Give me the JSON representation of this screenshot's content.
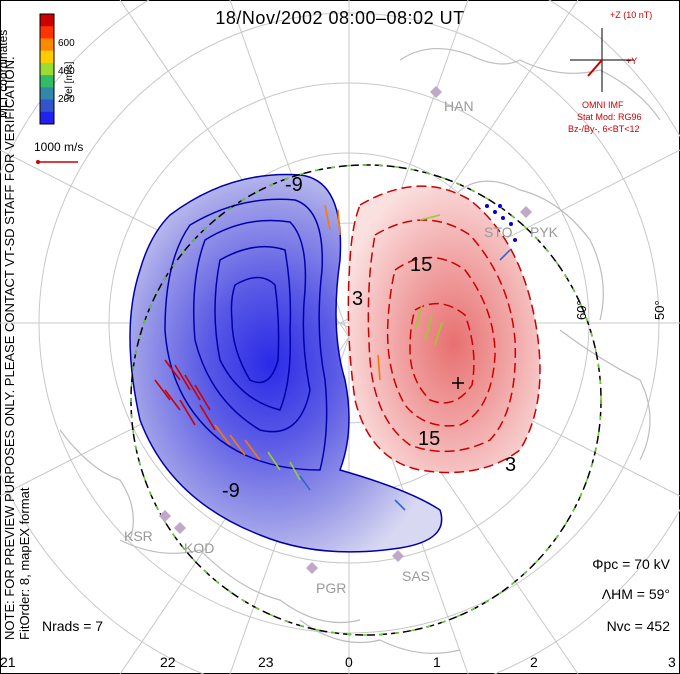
{
  "title": "18/Nov/2002 08:00–08:02 UT",
  "side_note": {
    "line1": "NOTE: FOR PREVIEW PURPOSES ONLY. PLEASE CONTACT VT-SD STAFF FOR VERIFICATION.",
    "line2": "FitOrder: 8, mapEX format"
  },
  "colorbar": {
    "title": "Vel [m/s]",
    "ticks": [
      "600",
      "400",
      "200"
    ],
    "colors": [
      "#cc0000",
      "#ff3300",
      "#ff8800",
      "#ffcc00",
      "#99dd33",
      "#33bb66",
      "#3388aa",
      "#3355cc",
      "#2222ee"
    ]
  },
  "coords_label": "MLT coordinates",
  "vel_ref": "1000 m/s",
  "imf": {
    "z_label": "+Z (10 nT)",
    "y_label": "+Y",
    "source": "OMNI IMF",
    "model1": "Stat Mod: RG96",
    "model2": "Bz-/By-, 6<BT<12"
  },
  "stats": {
    "phi_pc": "Φpc = 70 kV",
    "lambda_hm": "ΛHM = 59°",
    "n_vc": "Nvc = 452",
    "n_rads": "Nrads = 7"
  },
  "mlt_ticks": [
    "21",
    "22",
    "23",
    "0",
    "1",
    "2",
    "3"
  ],
  "lat_labels": [
    "60°",
    "50°"
  ],
  "sites": [
    "HAN",
    "STO",
    "PYK",
    "KSR",
    "KOD",
    "PGR",
    "SAS"
  ],
  "contour_labels": [
    "-9",
    "15",
    "15",
    "3",
    "3",
    "-9"
  ],
  "colors": {
    "positive": "#cc0000",
    "negative": "#0000aa",
    "boundary": "#66cc33"
  }
}
